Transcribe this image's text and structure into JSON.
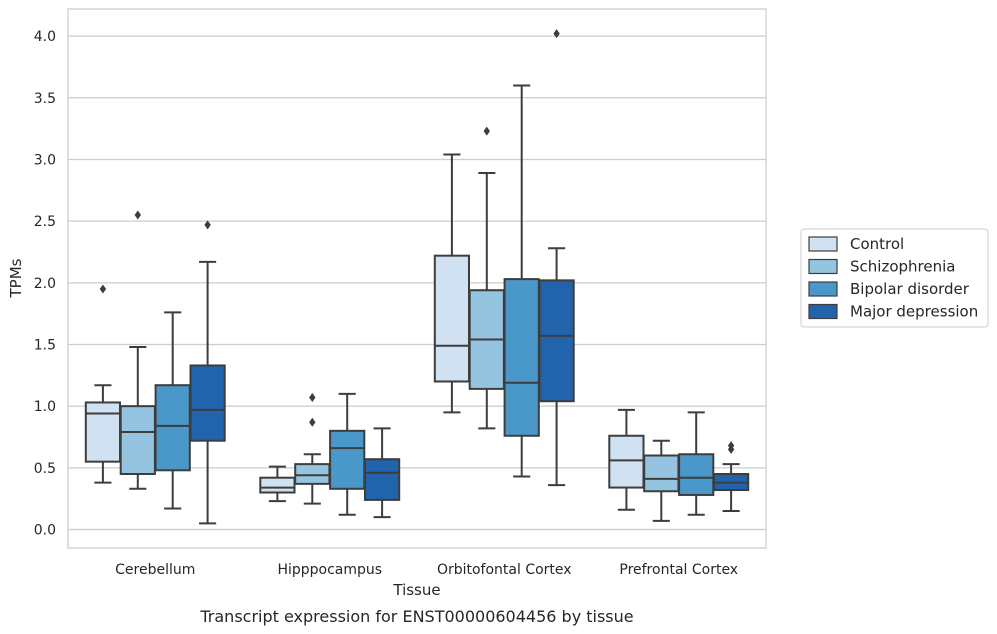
{
  "chart_data": {
    "type": "boxplot",
    "caption": "Transcript expression for ENST00000604456 by tissue",
    "xlabel": "Tissue",
    "ylabel": "TPMs",
    "ylim": [
      -0.15,
      4.22
    ],
    "yticks": [
      "0.0",
      "0.5",
      "1.0",
      "1.5",
      "2.0",
      "2.5",
      "3.0",
      "3.5",
      "4.0"
    ],
    "grid": "horizontal",
    "legend_position": "right",
    "categories": [
      "Cerebellum",
      "Hipppocampus",
      "Orbitofontal Cortex",
      "Prefrontal Cortex"
    ],
    "series": [
      {
        "name": "Control",
        "color": "#d0e1f2",
        "boxes": [
          {
            "whisker_low": 0.38,
            "q1": 0.55,
            "median": 0.94,
            "q3": 1.03,
            "whisker_high": 1.17,
            "outliers": [
              1.95
            ]
          },
          {
            "whisker_low": 0.23,
            "q1": 0.3,
            "median": 0.34,
            "q3": 0.42,
            "whisker_high": 0.51,
            "outliers": []
          },
          {
            "whisker_low": 0.95,
            "q1": 1.2,
            "median": 1.49,
            "q3": 2.22,
            "whisker_high": 3.04,
            "outliers": []
          },
          {
            "whisker_low": 0.16,
            "q1": 0.34,
            "median": 0.56,
            "q3": 0.76,
            "whisker_high": 0.97,
            "outliers": []
          }
        ]
      },
      {
        "name": "Schizophrenia",
        "color": "#94c4df",
        "boxes": [
          {
            "whisker_low": 0.33,
            "q1": 0.45,
            "median": 0.79,
            "q3": 1.0,
            "whisker_high": 1.48,
            "outliers": [
              2.55
            ]
          },
          {
            "whisker_low": 0.21,
            "q1": 0.37,
            "median": 0.44,
            "q3": 0.53,
            "whisker_high": 0.61,
            "outliers": [
              0.87,
              1.07
            ]
          },
          {
            "whisker_low": 0.82,
            "q1": 1.14,
            "median": 1.54,
            "q3": 1.94,
            "whisker_high": 2.89,
            "outliers": [
              3.23
            ]
          },
          {
            "whisker_low": 0.07,
            "q1": 0.31,
            "median": 0.41,
            "q3": 0.6,
            "whisker_high": 0.72,
            "outliers": []
          }
        ]
      },
      {
        "name": "Bipolar disorder",
        "color": "#4a98c9",
        "boxes": [
          {
            "whisker_low": 0.17,
            "q1": 0.48,
            "median": 0.84,
            "q3": 1.17,
            "whisker_high": 1.76,
            "outliers": []
          },
          {
            "whisker_low": 0.12,
            "q1": 0.33,
            "median": 0.66,
            "q3": 0.8,
            "whisker_high": 1.1,
            "outliers": []
          },
          {
            "whisker_low": 0.43,
            "q1": 0.76,
            "median": 1.19,
            "q3": 2.03,
            "whisker_high": 3.6,
            "outliers": []
          },
          {
            "whisker_low": 0.12,
            "q1": 0.28,
            "median": 0.42,
            "q3": 0.61,
            "whisker_high": 0.95,
            "outliers": []
          }
        ]
      },
      {
        "name": "Major depression",
        "color": "#2164ab",
        "boxes": [
          {
            "whisker_low": 0.05,
            "q1": 0.72,
            "median": 0.97,
            "q3": 1.33,
            "whisker_high": 2.17,
            "outliers": [
              2.47
            ]
          },
          {
            "whisker_low": 0.1,
            "q1": 0.24,
            "median": 0.46,
            "q3": 0.57,
            "whisker_high": 0.82,
            "outliers": []
          },
          {
            "whisker_low": 0.36,
            "q1": 1.04,
            "median": 1.57,
            "q3": 2.02,
            "whisker_high": 2.28,
            "outliers": [
              4.02
            ]
          },
          {
            "whisker_low": 0.15,
            "q1": 0.32,
            "median": 0.38,
            "q3": 0.45,
            "whisker_high": 0.53,
            "outliers": [
              0.65,
              0.68
            ]
          }
        ]
      }
    ]
  }
}
